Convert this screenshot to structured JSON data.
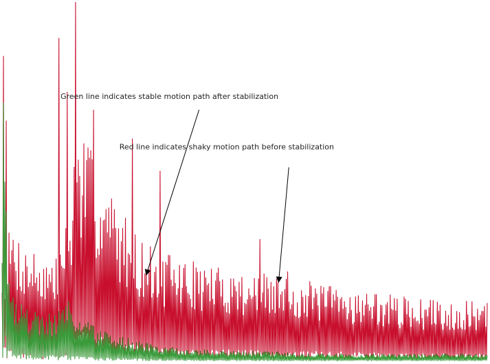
{
  "chart_data": {
    "type": "line",
    "title": "",
    "xlabel": "",
    "ylabel": "",
    "grid": false,
    "xlim": [
      0,
      1000
    ],
    "ylim": [
      0,
      100
    ],
    "series": [
      {
        "color": "#c8102e",
        "seed": 7,
        "envelope": {
          "x": [
            0,
            20,
            50,
            80,
            110,
            140,
            150,
            160,
            190,
            230,
            280,
            320,
            380,
            450,
            550,
            650,
            750,
            850,
            1000
          ],
          "y": [
            28,
            35,
            30,
            28,
            26,
            40,
            55,
            60,
            52,
            42,
            32,
            28,
            26,
            24,
            22,
            20,
            18,
            16,
            15
          ]
        },
        "spikes": [
          {
            "x": 2,
            "y": 85
          },
          {
            "x": 10,
            "y": 67
          },
          {
            "x": 118,
            "y": 90
          },
          {
            "x": 152,
            "y": 100
          },
          {
            "x": 134,
            "y": 75
          },
          {
            "x": 190,
            "y": 70
          },
          {
            "x": 270,
            "y": 62
          },
          {
            "x": 325,
            "y": 53
          },
          {
            "x": 532,
            "y": 34
          },
          {
            "x": 590,
            "y": 25
          }
        ]
      },
      {
        "color": "#3a9a3a",
        "seed": 19,
        "envelope": {
          "x": [
            0,
            5,
            12,
            25,
            50,
            80,
            110,
            130,
            150,
            200,
            260,
            320,
            400,
            550,
            700,
            850,
            1000
          ],
          "y": [
            40,
            70,
            30,
            18,
            14,
            12,
            13,
            16,
            14,
            8,
            6,
            4,
            3,
            2.5,
            2,
            2,
            2
          ]
        },
        "spikes": [
          {
            "x": 3,
            "y": 72
          },
          {
            "x": 6,
            "y": 50
          }
        ]
      }
    ],
    "annotations": [
      {
        "text": "Green line indicates stable motion path after stabilization",
        "text_xy": [
          345,
          73
        ],
        "arrow_tail": [
          406,
          70
        ],
        "arrow_head": [
          297,
          24
        ]
      },
      {
        "text": "Red line indicates shaky motion path before stabilization",
        "text_xy": [
          463,
          59
        ],
        "arrow_tail": [
          591,
          54
        ],
        "arrow_head": [
          570,
          22
        ]
      }
    ]
  }
}
